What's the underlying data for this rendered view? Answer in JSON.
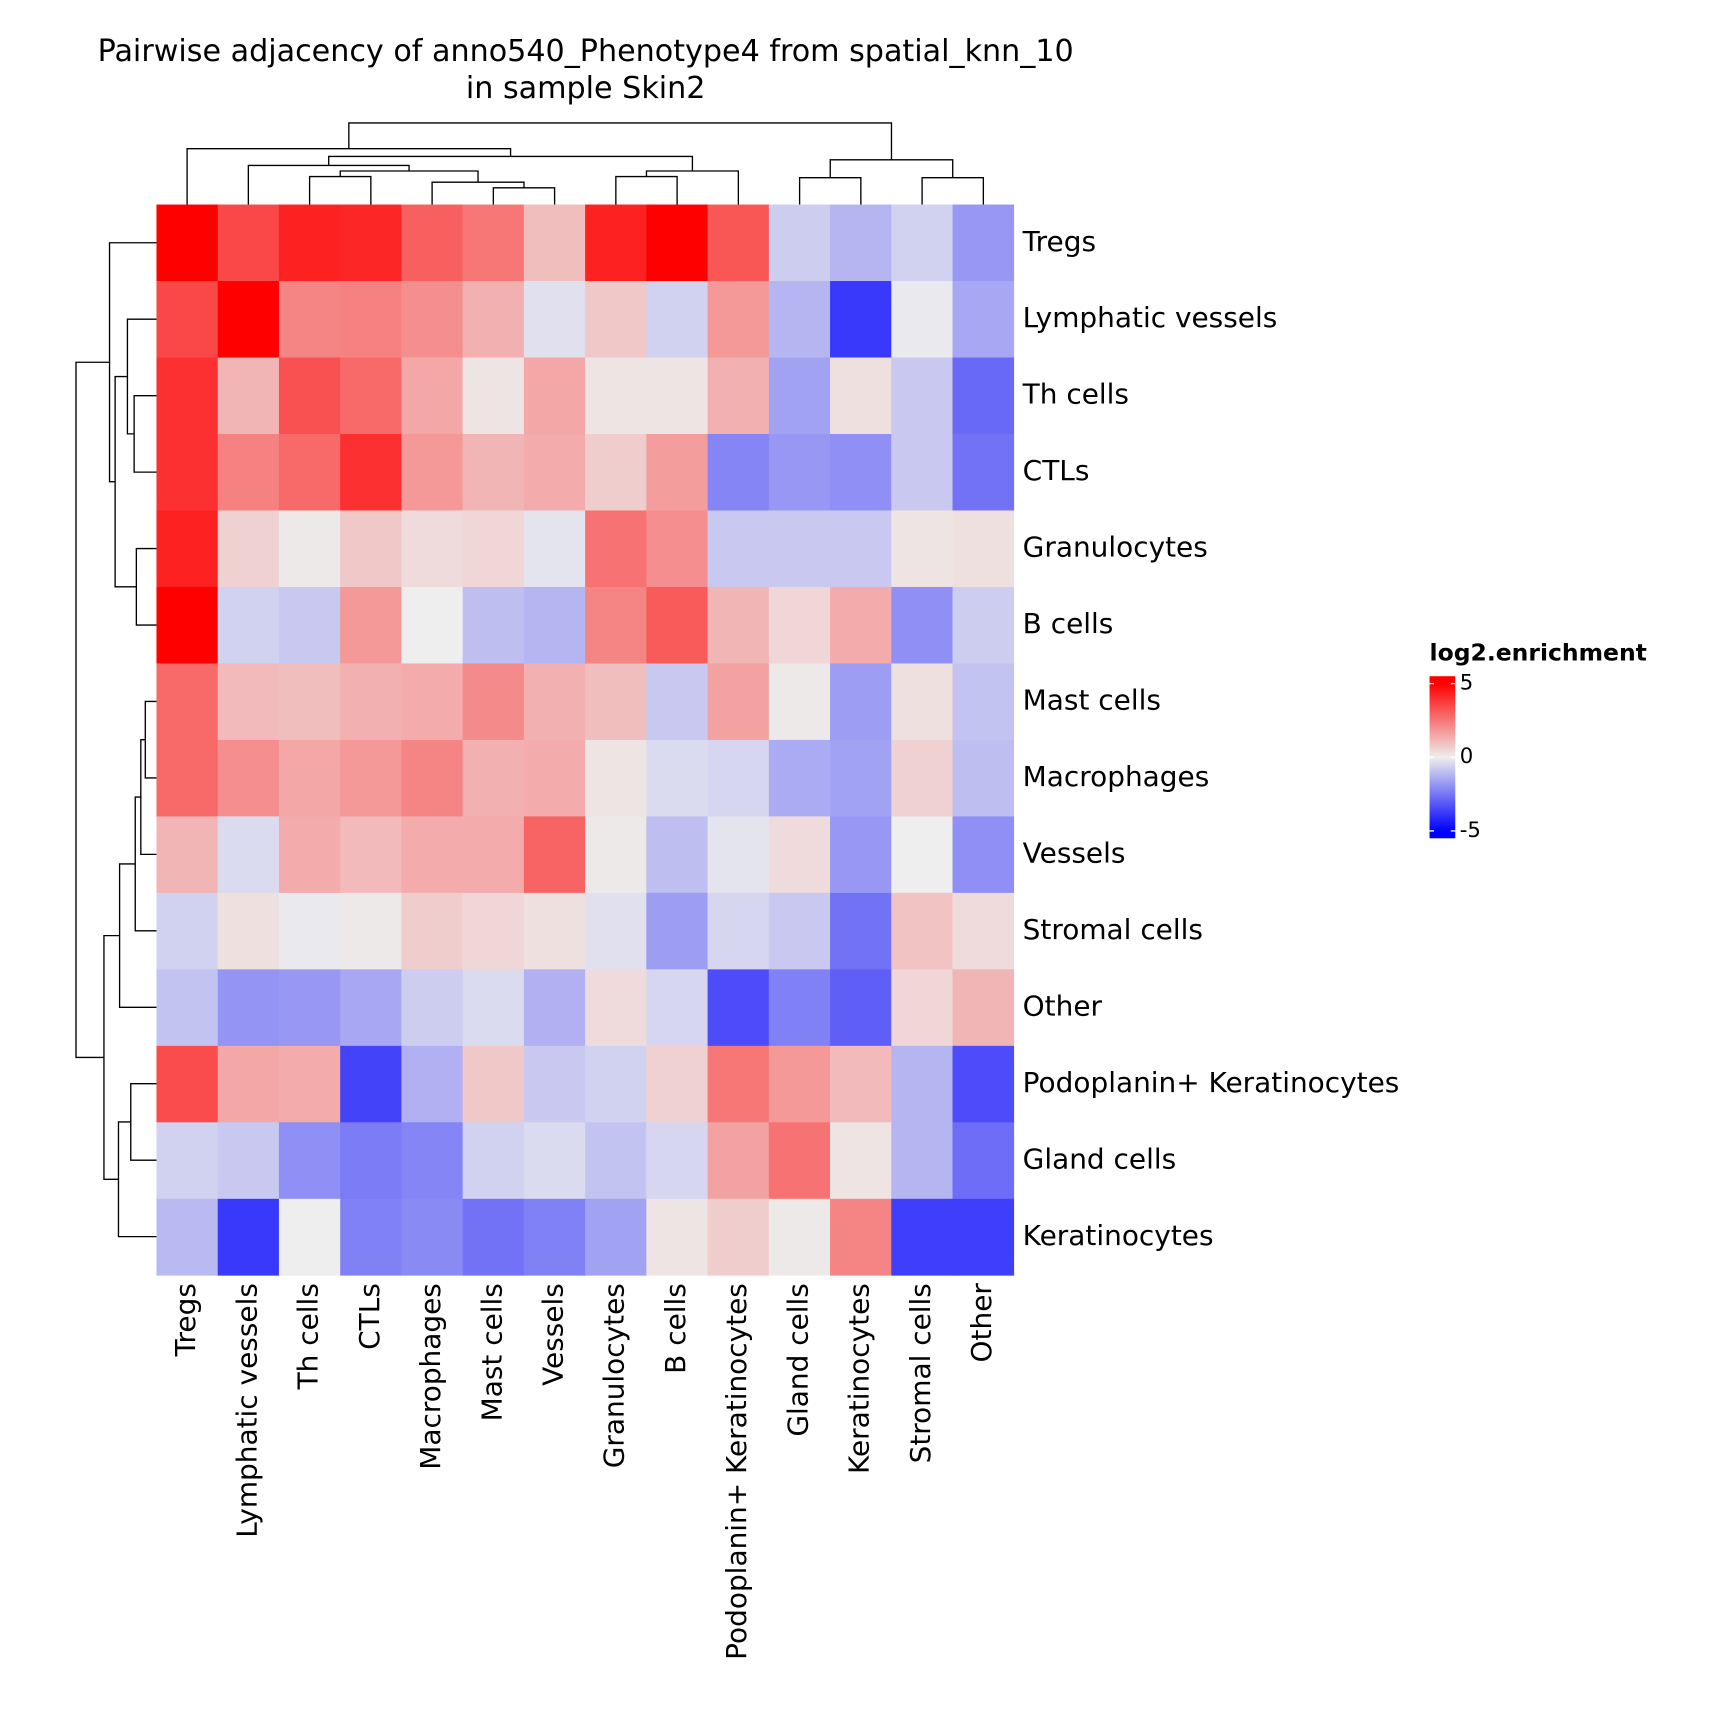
{
  "chart_data": {
    "type": "heatmap",
    "title": [
      "Pairwise adjacency of anno540_Phenotype4 from spatial_knn_10",
      "in sample Skin2"
    ],
    "columns": [
      "Tregs",
      "Lymphatic vessels",
      "Th cells",
      "CTLs",
      "Macrophages",
      "Mast cells",
      "Vessels",
      "Granulocytes",
      "B cells",
      "Podoplanin+ Keratinocytes",
      "Gland cells",
      "Keratinocytes",
      "Stromal cells",
      "Other"
    ],
    "rows": [
      "Tregs",
      "Lymphatic vessels",
      "Th cells",
      "CTLs",
      "Granulocytes",
      "B cells",
      "Mast cells",
      "Macrophages",
      "Vessels",
      "Stromal cells",
      "Other",
      "Podoplanin+ Keratinocytes",
      "Gland cells",
      "Keratinocytes"
    ],
    "values": [
      [
        5,
        3.5,
        4.3,
        4.2,
        3,
        2.5,
        1,
        4.3,
        5,
        3.2,
        -0.7,
        -1.2,
        -0.6,
        -1.8
      ],
      [
        3.5,
        5,
        2.2,
        2.3,
        2,
        1.3,
        -0.3,
        0.8,
        -0.6,
        1.8,
        -1.2,
        -3.8,
        -0.1,
        -1.5
      ],
      [
        4,
        1.2,
        3.3,
        2.8,
        1.5,
        0.2,
        1.5,
        0.2,
        0.2,
        1.3,
        -1.6,
        0.3,
        -0.8,
        -2.8
      ],
      [
        4,
        2.3,
        2.8,
        4,
        1.8,
        1.2,
        1.4,
        0.7,
        1.7,
        -2.2,
        -1.8,
        -2,
        -0.8,
        -2.6
      ],
      [
        4.3,
        0.6,
        0.1,
        0.8,
        0.4,
        0.5,
        -0.2,
        2.6,
        2,
        -0.8,
        -0.8,
        -0.8,
        0.2,
        0.3
      ],
      [
        5,
        -0.6,
        -0.8,
        1.8,
        0,
        -1,
        -1.2,
        2.2,
        3.1,
        1.2,
        0.5,
        1.4,
        -2,
        -0.7
      ],
      [
        2.8,
        1.1,
        1,
        1.3,
        1.4,
        2.1,
        1.3,
        1,
        -0.8,
        1.6,
        0.1,
        -1.7,
        0.3,
        -0.9
      ],
      [
        2.8,
        2,
        1.5,
        1.8,
        2.2,
        1.3,
        1.4,
        0.2,
        -0.4,
        -0.5,
        -1.4,
        -1.6,
        0.6,
        -1
      ],
      [
        1.2,
        -0.4,
        1.4,
        1.1,
        1.4,
        1.4,
        2.9,
        0.1,
        -1,
        -0.2,
        0.4,
        -1.8,
        0,
        -2
      ],
      [
        -0.6,
        0.3,
        -0.1,
        0.1,
        0.7,
        0.5,
        0.3,
        -0.3,
        -1.7,
        -0.5,
        -0.8,
        -2.6,
        0.9,
        0.4
      ],
      [
        -0.9,
        -1.9,
        -1.8,
        -1.5,
        -0.7,
        -0.4,
        -1.3,
        0.4,
        -0.5,
        -3.4,
        -2.3,
        -3,
        0.5,
        1.2
      ],
      [
        3.4,
        1.5,
        1.4,
        -3.6,
        -1.3,
        0.8,
        -0.8,
        -0.6,
        0.6,
        2.5,
        1.8,
        1.1,
        -1.2,
        -3.4
      ],
      [
        -0.6,
        -0.8,
        -2,
        -2.4,
        -2.2,
        -0.6,
        -0.4,
        -0.9,
        -0.5,
        1.6,
        2.6,
        0.2,
        -1.2,
        -2.7
      ],
      [
        -1.1,
        -3.8,
        0,
        -2.3,
        -2.1,
        -2.6,
        -2.3,
        -1.6,
        0.2,
        0.7,
        0.1,
        2.2,
        -3.7,
        -3.7
      ]
    ],
    "colors": [
      "#0000ff",
      "#eeeeee",
      "#ff0000"
    ],
    "color_domain": [
      -5,
      0,
      5
    ],
    "legend": {
      "title": "log2.enrichment",
      "lim": [
        -5.5,
        5.5
      ],
      "ticks": [
        -5,
        0,
        5
      ]
    }
  }
}
